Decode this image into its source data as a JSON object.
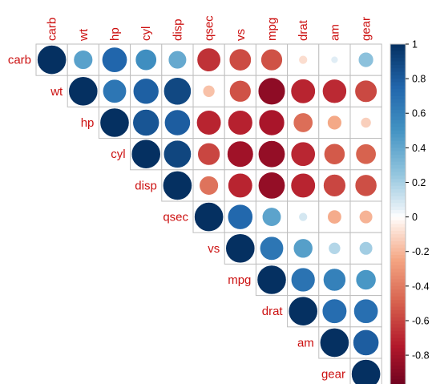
{
  "chart_data": {
    "type": "heatmap",
    "style": "upper-triangle correlation matrix, circle glyphs (area proportional to |r|)",
    "variables": [
      "carb",
      "wt",
      "hp",
      "cyl",
      "disp",
      "qsec",
      "vs",
      "mpg",
      "drat",
      "am",
      "gear"
    ],
    "matrix": [
      [
        1.0,
        0.43,
        0.75,
        0.53,
        0.39,
        -0.66,
        -0.57,
        -0.55,
        -0.09,
        0.06,
        0.27
      ],
      [
        0.43,
        1.0,
        0.66,
        0.78,
        0.89,
        -0.17,
        -0.55,
        -0.87,
        -0.71,
        -0.69,
        -0.58
      ],
      [
        0.75,
        0.66,
        1.0,
        0.83,
        0.79,
        -0.71,
        -0.72,
        -0.78,
        -0.45,
        -0.24,
        -0.13
      ],
      [
        0.53,
        0.78,
        0.83,
        1.0,
        0.9,
        -0.59,
        -0.81,
        -0.85,
        -0.7,
        -0.52,
        -0.49
      ],
      [
        0.39,
        0.89,
        0.79,
        0.9,
        1.0,
        -0.43,
        -0.71,
        -0.85,
        -0.71,
        -0.59,
        -0.56
      ],
      [
        -0.66,
        -0.17,
        -0.71,
        -0.59,
        -0.43,
        1.0,
        0.74,
        0.42,
        0.09,
        -0.23,
        -0.21
      ],
      [
        -0.57,
        -0.55,
        -0.72,
        -0.81,
        -0.71,
        0.74,
        1.0,
        0.66,
        0.44,
        0.17,
        0.21
      ],
      [
        -0.55,
        -0.87,
        -0.78,
        -0.85,
        -0.85,
        0.42,
        0.66,
        1.0,
        0.68,
        0.6,
        0.48
      ],
      [
        -0.09,
        -0.71,
        -0.45,
        -0.7,
        -0.71,
        0.09,
        0.44,
        0.68,
        1.0,
        0.71,
        0.7
      ],
      [
        0.06,
        -0.69,
        -0.24,
        -0.52,
        -0.59,
        -0.23,
        0.17,
        0.6,
        0.71,
        1.0,
        0.79
      ],
      [
        0.27,
        -0.58,
        -0.13,
        -0.49,
        -0.56,
        -0.21,
        0.21,
        0.48,
        0.7,
        0.79,
        1.0
      ]
    ],
    "colorbar": {
      "ticks": [
        "1",
        "0.8",
        "0.6",
        "0.4",
        "0.2",
        "0",
        "-0.2",
        "-0.4",
        "-0.6",
        "-0.8"
      ],
      "tick_values": [
        1,
        0.8,
        0.6,
        0.4,
        0.2,
        0,
        -0.2,
        -0.4,
        -0.6,
        -0.8
      ],
      "range": [
        -1,
        1
      ],
      "placement": "right"
    },
    "colors": {
      "positive_end": "#053061",
      "neutral": "#ffffff",
      "negative_end": "#67001f",
      "label": "#cc1111",
      "grid": "#bebebe"
    },
    "title": "",
    "xlabel": "",
    "ylabel": "",
    "grid": true
  }
}
